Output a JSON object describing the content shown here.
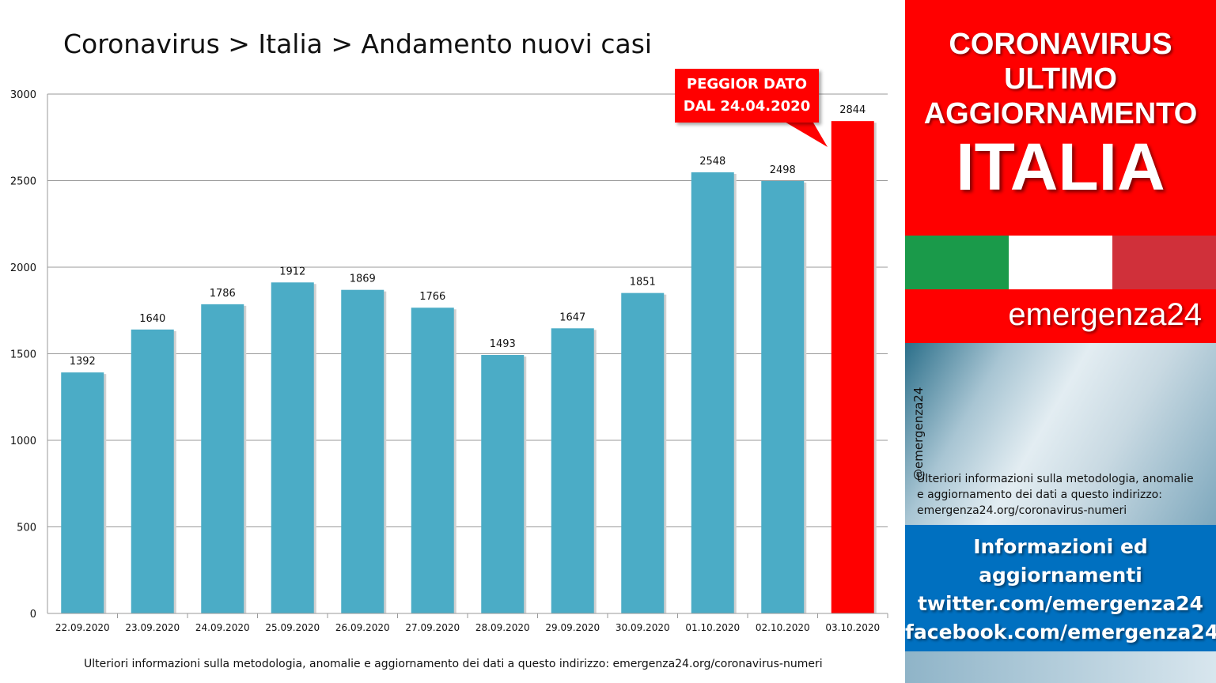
{
  "title": "Coronavirus > Italia > Andamento nuovi casi",
  "callout": {
    "line1": "PEGGIOR DATO",
    "line2": "DAL 24.04.2020"
  },
  "footer_note": "Ulteriori informazioni sulla metodologia, anomalie e aggiornamento dei dati a questo indirizzo: emergenza24.org/coronavirus-numeri",
  "panel": {
    "head_lines": [
      "CORONAVIRUS",
      "ULTIMO",
      "AGGIORNAMENTO"
    ],
    "country": "ITALIA",
    "brand": "emergenza24",
    "handle": "@emergenza24",
    "note_lines": [
      "Ulteriori informazioni sulla metodologia, anomalie",
      "e aggiornamento dei dati a questo indirizzo:",
      "emergenza24.org/coronavirus-numeri"
    ],
    "info_lines": [
      "Informazioni ed",
      "aggiornamenti",
      "twitter.com/emergenza24",
      "facebook.com/emergenza24"
    ]
  },
  "colors": {
    "bar": "#4bacc6",
    "highlight": "#ff0000",
    "flag": [
      "#1a9a4a",
      "#ffffff",
      "#d0303a"
    ]
  },
  "chart_data": {
    "type": "bar",
    "categories": [
      "22.09.2020",
      "23.09.2020",
      "24.09.2020",
      "25.09.2020",
      "26.09.2020",
      "27.09.2020",
      "28.09.2020",
      "29.09.2020",
      "30.09.2020",
      "01.10.2020",
      "02.10.2020",
      "03.10.2020"
    ],
    "values": [
      1392,
      1640,
      1786,
      1912,
      1869,
      1766,
      1493,
      1647,
      1851,
      2548,
      2498,
      2844
    ],
    "highlight_index": 11,
    "ylim": [
      0,
      3000
    ],
    "yticks": [
      0,
      500,
      1000,
      1500,
      2000,
      2500,
      3000
    ],
    "grid": true,
    "data_labels": true
  }
}
